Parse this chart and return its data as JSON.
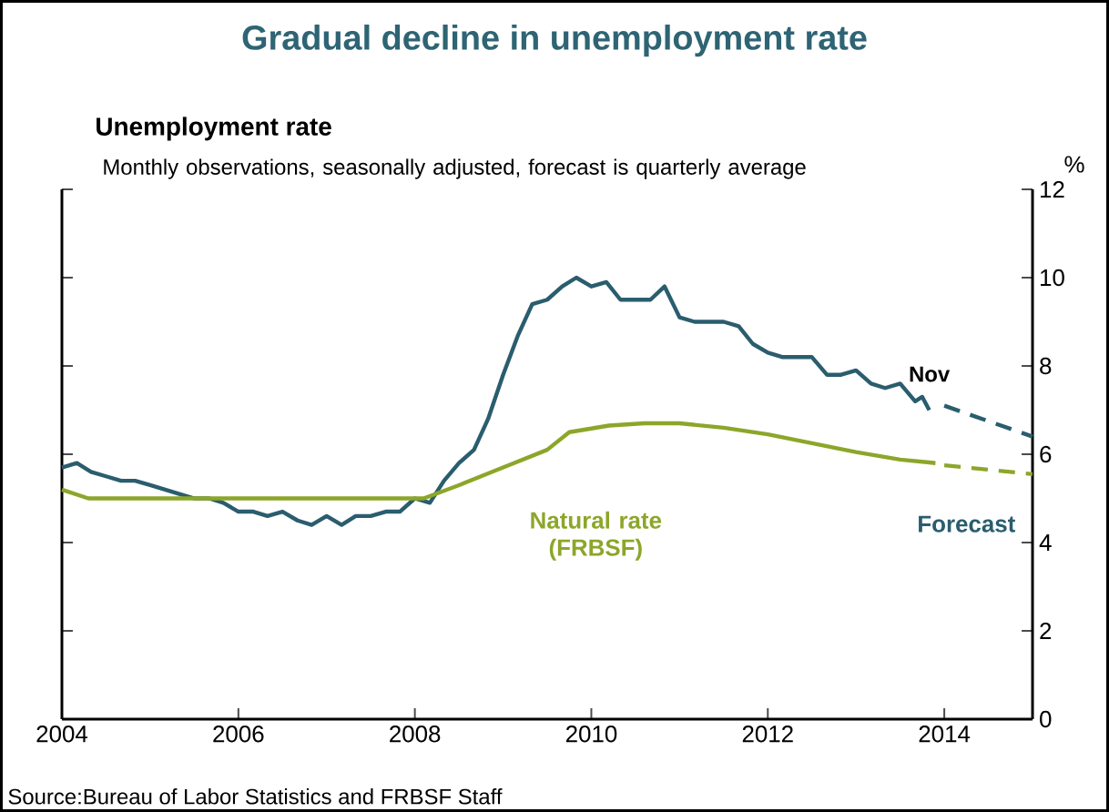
{
  "chart_data": {
    "type": "line",
    "title": "Gradual decline in unemployment rate",
    "subtitle": "Unemployment rate",
    "ylabel": "%",
    "annotations": [
      "Monthly observations, seasonally adjusted, forecast is quarterly average",
      {
        "text": "Nov",
        "x": 2013.83,
        "y": 7.0
      },
      "Source:Bureau of Labor Statistics and FRBSF Staff"
    ],
    "xlim": [
      2004,
      2015
    ],
    "xticks": [
      2004,
      2006,
      2008,
      2010,
      2012,
      2014
    ],
    "ylim": [
      0,
      12
    ],
    "yticks": [
      0,
      2,
      4,
      6,
      8,
      10,
      12
    ],
    "legend": false,
    "series": [
      {
        "color": "#2a5d6e",
        "line_style": "solid",
        "x": [
          2004.0,
          2004.17,
          2004.33,
          2004.5,
          2004.67,
          2004.83,
          2005.0,
          2005.17,
          2005.33,
          2005.5,
          2005.67,
          2005.83,
          2006.0,
          2006.17,
          2006.33,
          2006.5,
          2006.67,
          2006.83,
          2007.0,
          2007.17,
          2007.33,
          2007.5,
          2007.67,
          2007.83,
          2008.0,
          2008.17,
          2008.33,
          2008.5,
          2008.67,
          2008.83,
          2009.0,
          2009.17,
          2009.33,
          2009.5,
          2009.67,
          2009.83,
          2010.0,
          2010.17,
          2010.33,
          2010.5,
          2010.67,
          2010.83,
          2011.0,
          2011.17,
          2011.33,
          2011.5,
          2011.67,
          2011.83,
          2012.0,
          2012.17,
          2012.33,
          2012.5,
          2012.67,
          2012.83,
          2013.0,
          2013.17,
          2013.33,
          2013.5,
          2013.67,
          2013.75,
          2013.83
        ],
        "values": [
          5.7,
          5.8,
          5.6,
          5.5,
          5.4,
          5.4,
          5.3,
          5.2,
          5.1,
          5.0,
          5.0,
          4.9,
          4.7,
          4.7,
          4.6,
          4.7,
          4.5,
          4.4,
          4.6,
          4.4,
          4.6,
          4.6,
          4.7,
          4.7,
          5.0,
          4.9,
          5.4,
          5.8,
          6.1,
          6.8,
          7.8,
          8.7,
          9.4,
          9.5,
          9.8,
          10.0,
          9.8,
          9.9,
          9.5,
          9.5,
          9.5,
          9.8,
          9.1,
          9.0,
          9.0,
          9.0,
          8.9,
          8.5,
          8.3,
          8.2,
          8.2,
          8.2,
          7.8,
          7.8,
          7.9,
          7.6,
          7.5,
          7.6,
          7.2,
          7.3,
          7.0
        ]
      },
      {
        "name": "Forecast",
        "color": "#2a5d6e",
        "line_style": "dashed",
        "x": [
          2014.0,
          2014.5,
          2015.0
        ],
        "values": [
          7.1,
          6.75,
          6.4
        ]
      },
      {
        "name": "Natural rate (FRBSF)",
        "color": "#8ca62a",
        "line_style": "solid",
        "x": [
          2004.0,
          2004.3,
          2005.0,
          2006.0,
          2007.0,
          2008.1,
          2008.5,
          2009.0,
          2009.5,
          2009.75,
          2010.2,
          2010.6,
          2011.0,
          2011.5,
          2012.0,
          2012.5,
          2013.0,
          2013.5,
          2013.9
        ],
        "values": [
          5.2,
          5.0,
          5.0,
          5.0,
          5.0,
          5.0,
          5.3,
          5.7,
          6.1,
          6.5,
          6.65,
          6.7,
          6.7,
          6.6,
          6.45,
          6.25,
          6.05,
          5.88,
          5.8
        ]
      },
      {
        "color": "#8ca62a",
        "line_style": "dashed",
        "x": [
          2014.0,
          2014.5,
          2015.0
        ],
        "values": [
          5.75,
          5.65,
          5.55
        ]
      }
    ]
  }
}
